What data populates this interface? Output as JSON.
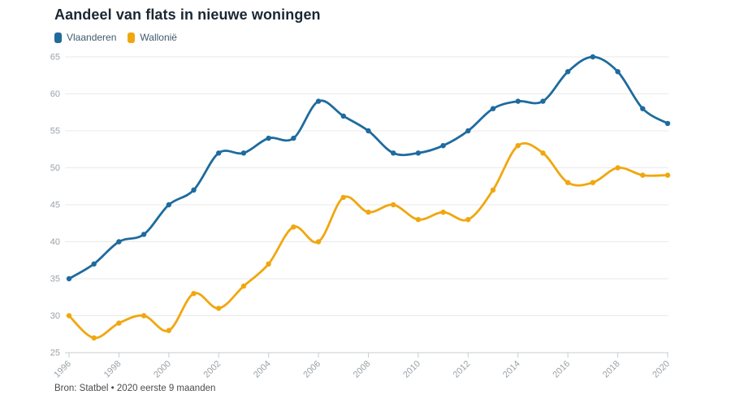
{
  "title": "Aandeel van flats in nieuwe woningen",
  "source": "Bron: Statbel • 2020 eerste 9 maanden",
  "legend": {
    "items": [
      {
        "label": "Vlaanderen",
        "color": "#1e6b9e"
      },
      {
        "label": "Wallonië",
        "color": "#f0a70f"
      }
    ]
  },
  "colors": {
    "title_text": "#1a2733",
    "legend_text": "#3e5a6d",
    "axis_text": "#9aa2a8",
    "grid_line": "#eaeaea",
    "axis_line": "#c9ccce",
    "source_text": "#4c4c4c",
    "background": "#ffffff"
  },
  "chart_data": {
    "type": "line",
    "title": "Aandeel van flats in nieuwe woningen",
    "xlabel": "",
    "ylabel": "",
    "x": [
      1996,
      1997,
      1998,
      1999,
      2000,
      2001,
      2002,
      2003,
      2004,
      2005,
      2006,
      2007,
      2008,
      2009,
      2010,
      2011,
      2012,
      2013,
      2014,
      2015,
      2016,
      2017,
      2018,
      2019,
      2020
    ],
    "series": [
      {
        "name": "Vlaanderen",
        "color": "#1e6b9e",
        "values": [
          35,
          37,
          40,
          41,
          45,
          47,
          52,
          52,
          54,
          54,
          59,
          57,
          55,
          52,
          52,
          53,
          55,
          58,
          59,
          59,
          63,
          65,
          63,
          58,
          56
        ]
      },
      {
        "name": "Wallonië",
        "color": "#f0a70f",
        "values": [
          30,
          27,
          29,
          30,
          28,
          33,
          31,
          34,
          37,
          42,
          40,
          46,
          44,
          45,
          43,
          44,
          43,
          47,
          53,
          52,
          48,
          48,
          50,
          49,
          49
        ]
      }
    ],
    "ylim": [
      25,
      65
    ],
    "y_ticks": [
      25,
      30,
      35,
      40,
      45,
      50,
      55,
      60,
      65
    ],
    "x_tick_labels": [
      1996,
      1998,
      2000,
      2002,
      2004,
      2006,
      2008,
      2010,
      2012,
      2014,
      2016,
      2018,
      2020
    ],
    "grid": true,
    "legend_position": "top-left",
    "line_shape": "smooth",
    "markers": true,
    "source": "Bron: Statbel • 2020 eerste 9 maanden"
  }
}
